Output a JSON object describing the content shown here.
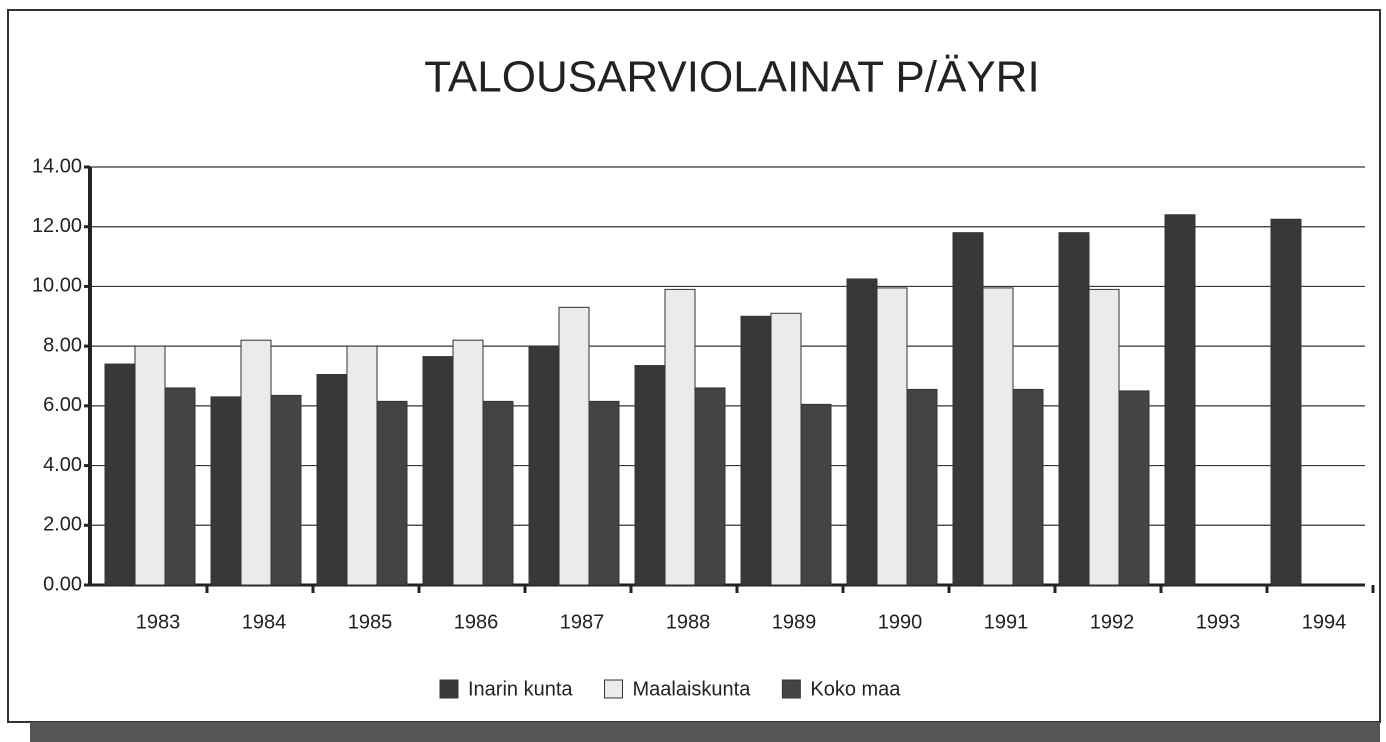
{
  "chart_data": {
    "type": "bar",
    "title": "TALOUSARVIOLAINAT P/ÄYRI",
    "categories": [
      "1983",
      "1984",
      "1985",
      "1986",
      "1987",
      "1988",
      "1989",
      "1990",
      "1991",
      "1992",
      "1993",
      "1994"
    ],
    "series": [
      {
        "name": "Inarin kunta",
        "color": "#383838",
        "values": [
          7.4,
          6.3,
          7.05,
          7.65,
          8.0,
          7.35,
          9.0,
          10.25,
          11.8,
          11.8,
          12.4,
          12.25
        ]
      },
      {
        "name": "Maalaiskunta",
        "color": "#ebebeb",
        "values": [
          8.0,
          8.2,
          8.0,
          8.2,
          9.3,
          9.9,
          9.1,
          9.95,
          9.95,
          9.9,
          null,
          null
        ]
      },
      {
        "name": "Koko maa",
        "color": "#444444",
        "values": [
          6.6,
          6.35,
          6.15,
          6.15,
          6.15,
          6.6,
          6.05,
          6.55,
          6.55,
          6.5,
          null,
          null
        ]
      }
    ],
    "ylim": [
      0,
      14
    ],
    "yticks": [
      {
        "value": 0,
        "label": "0.00"
      },
      {
        "value": 2,
        "label": "2.00"
      },
      {
        "value": 4,
        "label": "4.00"
      },
      {
        "value": 6,
        "label": "6.00"
      },
      {
        "value": 8,
        "label": "8.00"
      },
      {
        "value": 10,
        "label": "10.00"
      },
      {
        "value": 12,
        "label": "12.00"
      },
      {
        "value": 14,
        "label": "14.00"
      }
    ],
    "grid": true,
    "legend": "bottom"
  }
}
